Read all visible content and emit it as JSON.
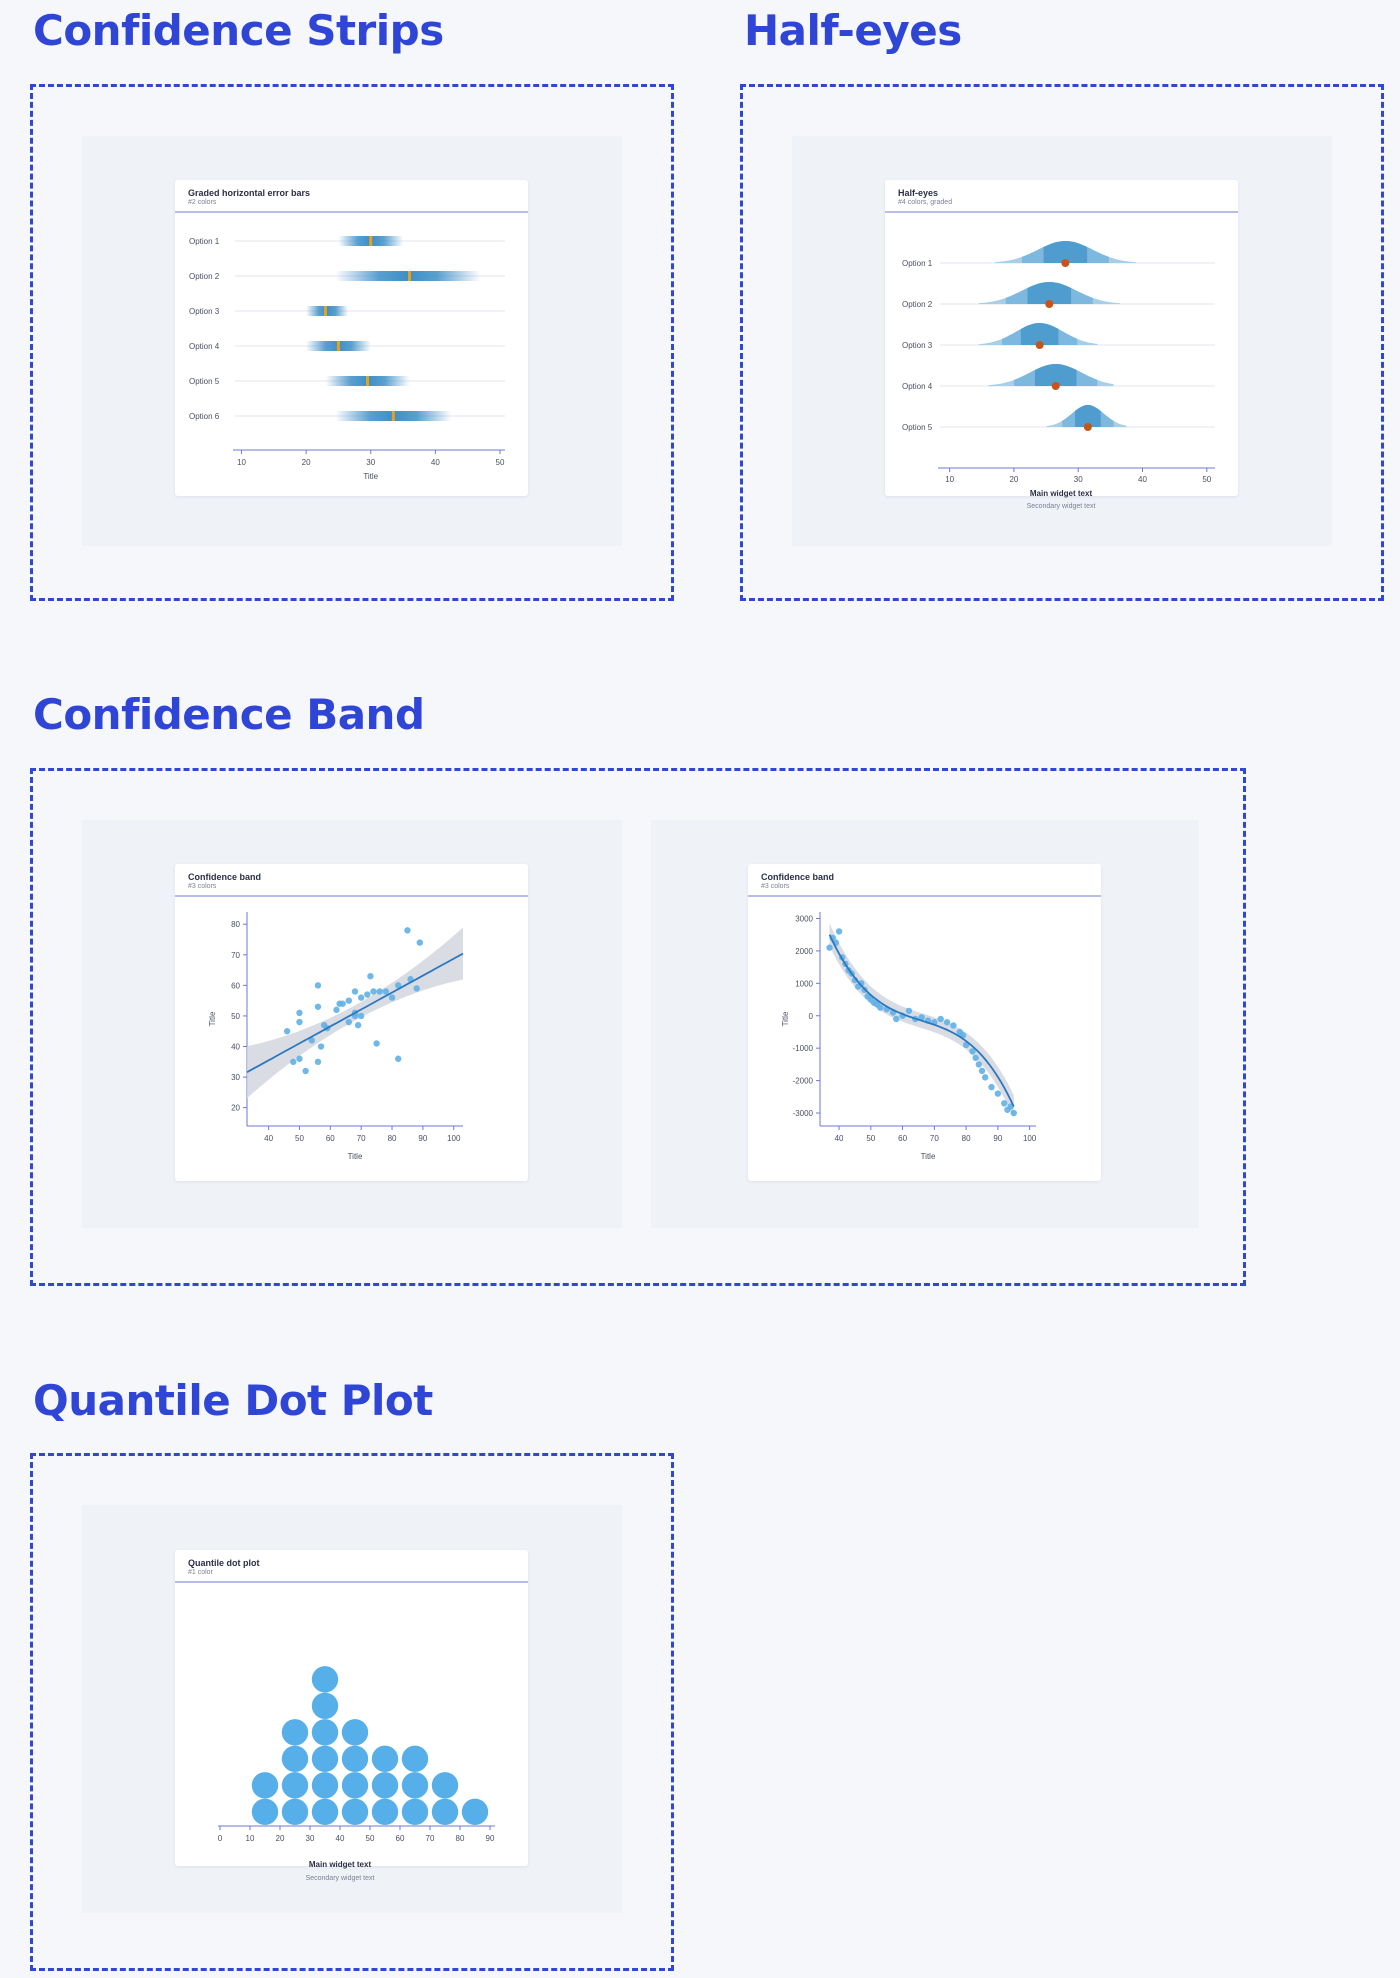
{
  "sections": {
    "strips": "Confidence Strips",
    "halfeyes": "Half-eyes",
    "band": "Confidence Band",
    "quantile": "Quantile Dot Plot"
  },
  "cards": {
    "strips": {
      "title": "Graded horizontal error bars",
      "subtitle": "#2 colors",
      "xlabel": "Title"
    },
    "halfeyes": {
      "title": "Half-eyes",
      "subtitle": "#4 colors, graded",
      "main_text": "Main widget text",
      "secondary_text": "Secondary widget text"
    },
    "band_linear": {
      "title": "Confidence band",
      "subtitle": "#3 colors",
      "xlabel": "Title",
      "ylabel": "Title"
    },
    "band_cubic": {
      "title": "Confidence band",
      "subtitle": "#3 colors",
      "xlabel": "Title",
      "ylabel": "Title"
    },
    "quantile": {
      "title": "Quantile dot plot",
      "subtitle": "#1 color",
      "main_text": "Main widget text",
      "secondary_text": "Secondary widget text"
    }
  },
  "colors": {
    "accent": "#2f45d6",
    "strip_blue": "#3d8fc7",
    "strip_point": "#e8a21a",
    "eye_light": "#a8cfe8",
    "eye_mid": "#7db8de",
    "eye_dark": "#4f9ccf",
    "eye_point": "#c9541b",
    "band_fill": "#d3d6de",
    "band_line": "#2a78c0",
    "scatter": "#5fb0e6",
    "quantile_dot": "#56afe8"
  },
  "chart_data": [
    {
      "id": "strips",
      "type": "interval",
      "categories": [
        "Option 1",
        "Option 2",
        "Option 3",
        "Option 4",
        "Option 5",
        "Option 6"
      ],
      "point": [
        30,
        36,
        23,
        25,
        29.5,
        33.5
      ],
      "low": [
        25,
        24.5,
        20,
        20,
        23,
        24.5
      ],
      "high": [
        35,
        47,
        26.5,
        30,
        36,
        42.5
      ],
      "xticks": [
        10,
        20,
        30,
        40,
        50
      ],
      "xlim": [
        9,
        50
      ],
      "xlabel": "Title"
    },
    {
      "id": "halfeyes",
      "type": "density",
      "categories": [
        "Option 1",
        "Option 2",
        "Option 3",
        "Option 4",
        "Option 5"
      ],
      "mode": [
        28,
        25.5,
        24,
        26.5,
        31.5
      ],
      "low": [
        17,
        14.5,
        14.5,
        16,
        25
      ],
      "high": [
        39,
        36.5,
        33,
        35.5,
        37.5
      ],
      "xticks": [
        10,
        20,
        30,
        40,
        50
      ],
      "xlim": [
        8.5,
        50.5
      ]
    },
    {
      "id": "band_linear",
      "type": "scatter",
      "points": [
        [
          46,
          45
        ],
        [
          48,
          35
        ],
        [
          50,
          36
        ],
        [
          50,
          48
        ],
        [
          50,
          51
        ],
        [
          52,
          32
        ],
        [
          54,
          42
        ],
        [
          56,
          60
        ],
        [
          56,
          53
        ],
        [
          56,
          35
        ],
        [
          57,
          40
        ],
        [
          58,
          47
        ],
        [
          59,
          46
        ],
        [
          62,
          52
        ],
        [
          63,
          54
        ],
        [
          64,
          54
        ],
        [
          66,
          55
        ],
        [
          66,
          48
        ],
        [
          68,
          50
        ],
        [
          68,
          58
        ],
        [
          68,
          51
        ],
        [
          69,
          47
        ],
        [
          70,
          50
        ],
        [
          70,
          56
        ],
        [
          72,
          57
        ],
        [
          73,
          63
        ],
        [
          74,
          58
        ],
        [
          75,
          41
        ],
        [
          76,
          58
        ],
        [
          78,
          58
        ],
        [
          80,
          56
        ],
        [
          82,
          36
        ],
        [
          82,
          60
        ],
        [
          85,
          78
        ],
        [
          86,
          62
        ],
        [
          88,
          59
        ],
        [
          89,
          74
        ]
      ],
      "fit": {
        "x": [
          33,
          103
        ],
        "y": [
          31.6,
          70.4
        ]
      },
      "xticks": [
        40,
        50,
        60,
        70,
        80,
        90,
        100
      ],
      "yticks": [
        20,
        30,
        40,
        50,
        60,
        70,
        80
      ],
      "xlim": [
        33,
        103
      ],
      "ylim": [
        14,
        84
      ],
      "xlabel": "Title",
      "ylabel": "Title"
    },
    {
      "id": "band_cubic",
      "type": "scatter",
      "points": [
        [
          37,
          2100
        ],
        [
          38,
          2400
        ],
        [
          39,
          2250
        ],
        [
          40,
          2600
        ],
        [
          41,
          1800
        ],
        [
          42,
          1600
        ],
        [
          43,
          1400
        ],
        [
          44,
          1300
        ],
        [
          45,
          1100
        ],
        [
          46,
          900
        ],
        [
          47,
          1000
        ],
        [
          48,
          800
        ],
        [
          49,
          600
        ],
        [
          50,
          500
        ],
        [
          51,
          400
        ],
        [
          52,
          350
        ],
        [
          53,
          250
        ],
        [
          55,
          200
        ],
        [
          57,
          100
        ],
        [
          58,
          -100
        ],
        [
          60,
          0
        ],
        [
          62,
          150
        ],
        [
          64,
          -100
        ],
        [
          66,
          -50
        ],
        [
          68,
          -150
        ],
        [
          70,
          -200
        ],
        [
          72,
          -100
        ],
        [
          74,
          -200
        ],
        [
          76,
          -300
        ],
        [
          78,
          -500
        ],
        [
          79,
          -600
        ],
        [
          80,
          -900
        ],
        [
          82,
          -1100
        ],
        [
          83,
          -1300
        ],
        [
          84,
          -1500
        ],
        [
          85,
          -1700
        ],
        [
          86,
          -1900
        ],
        [
          88,
          -2200
        ],
        [
          90,
          -2400
        ],
        [
          92,
          -2700
        ],
        [
          93,
          -2900
        ],
        [
          94,
          -2800
        ],
        [
          95,
          -3000
        ]
      ],
      "fit": {
        "x": [
          37,
          95
        ],
        "y": [
          2680,
          -3000
        ]
      },
      "xticks": [
        40,
        50,
        60,
        70,
        80,
        90,
        100
      ],
      "yticks": [
        -3000,
        -2000,
        -1000,
        0,
        1000,
        2000,
        3000
      ],
      "xlim": [
        34,
        102
      ],
      "ylim": [
        -3400,
        3200
      ],
      "xlabel": "Title",
      "ylabel": "Title"
    },
    {
      "id": "quantile",
      "type": "dotplot",
      "bins": [
        15,
        25,
        35,
        45,
        55,
        65,
        75,
        85
      ],
      "counts": [
        2,
        4,
        6,
        4,
        3,
        3,
        2,
        1
      ],
      "xticks": [
        0,
        10,
        20,
        30,
        40,
        50,
        60,
        70,
        80,
        90
      ],
      "xlim": [
        0,
        90
      ]
    }
  ]
}
